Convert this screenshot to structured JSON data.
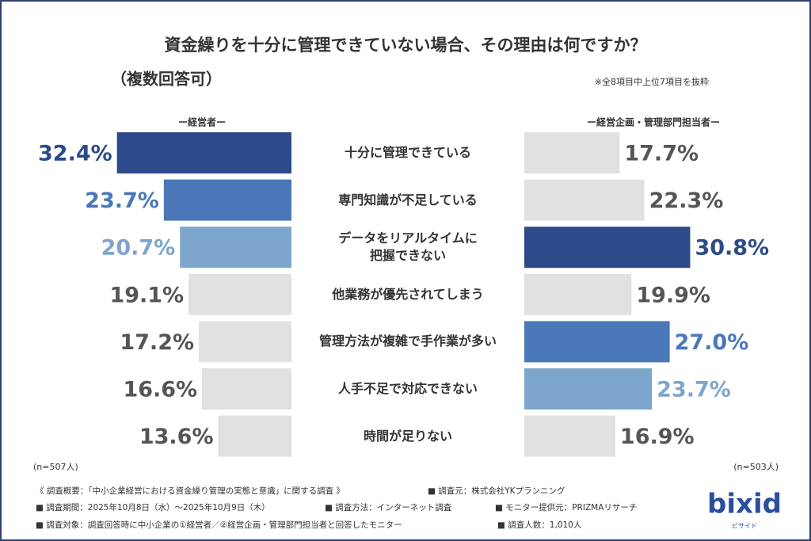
{
  "chart_data": {
    "type": "butterfly_bar",
    "title": "資金繰りを十分に管理できていない場合、その理由は何ですか？",
    "subtitle": "（複数回答可）",
    "note": "※全8項目中上位7項目を抜粋",
    "categories": [
      "十分に管理できている",
      "専門知識が不足している",
      "データをリアルタイムに\n把握できない",
      "他業務が優先されてしまう",
      "管理方法が複雑で手作業が多い",
      "人手不足で対応できない",
      "時間が足りない"
    ],
    "series": [
      {
        "name": "ー経営者ー",
        "sample": "(n=507人)",
        "values": [
          32.4,
          23.7,
          20.7,
          19.1,
          17.2,
          16.6,
          13.6
        ],
        "value_labels": [
          "32.4%",
          "23.7%",
          "20.7%",
          "19.1%",
          "17.2%",
          "16.6%",
          "13.6%"
        ],
        "colors": [
          "#2d4a8a",
          "#4a78b8",
          "#7ea6cc",
          "#e1e1e1",
          "#e1e1e1",
          "#e1e1e1",
          "#e1e1e1"
        ]
      },
      {
        "name": "ー経営企画・管理部門担当者ー",
        "sample": "(n=503人)",
        "values": [
          17.7,
          22.3,
          30.8,
          19.9,
          27.0,
          23.7,
          16.9
        ],
        "value_labels": [
          "17.7%",
          "22.3%",
          "30.8%",
          "19.9%",
          "27.0%",
          "23.7%",
          "16.9%"
        ],
        "colors": [
          "#e1e1e1",
          "#e1e1e1",
          "#2d4a8a",
          "#e1e1e1",
          "#4a78b8",
          "#7ea6cc",
          "#e1e1e1"
        ]
      }
    ],
    "footnotes": [
      [
        "《 調査概要：「中小企業経営における資金繰り管理の実態と意識」に関する調査 》",
        "■ 調査元：株式会社YKプランニング"
      ],
      [
        "■ 調査期間：2025年10月8日（水）〜2025年10月9日（木）",
        "■ 調査方法：インターネット調査",
        "■ モニター提供元：PRIZMAリサーチ"
      ],
      [
        "■ 調査対象：調査回答時に中小企業の①経営者／②経営企画・管理部門担当者と回答したモニター",
        "■ 調査人数：1,010人"
      ]
    ],
    "logo": "bixid",
    "logo_sub": "ビサイド"
  }
}
